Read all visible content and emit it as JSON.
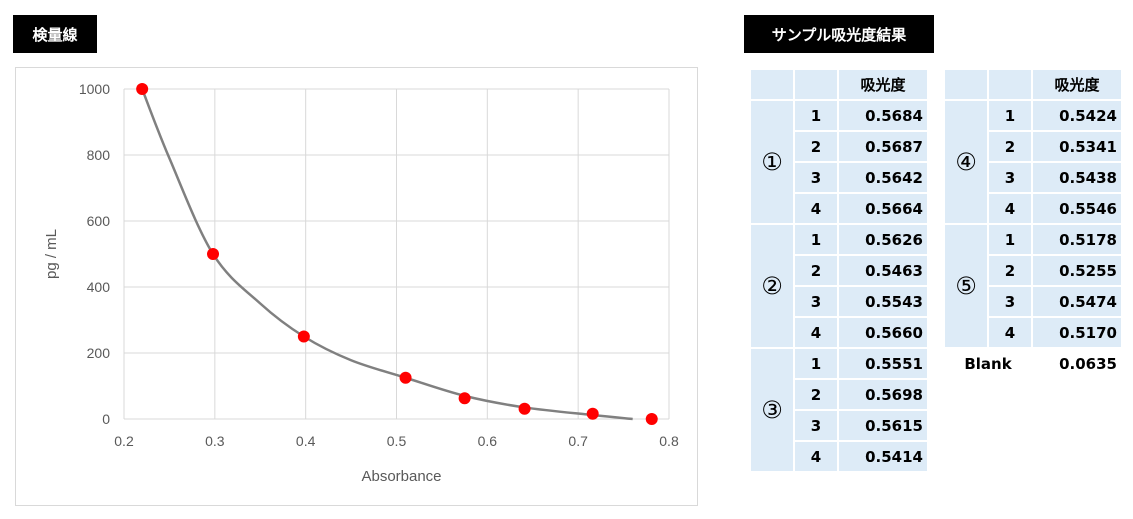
{
  "labels": {
    "chart": "検量線",
    "table": "サンプル吸光度結果"
  },
  "chart_data": {
    "type": "scatter",
    "xlabel": "Absorbance",
    "ylabel": "pg / mL",
    "xlim": [
      0.2,
      0.8
    ],
    "ylim": [
      0,
      1000
    ],
    "xticks": [
      "0.2",
      "0.3",
      "0.4",
      "0.5",
      "0.6",
      "0.7",
      "0.8"
    ],
    "yticks": [
      "0",
      "200",
      "400",
      "600",
      "800",
      "1000"
    ],
    "grid": true,
    "marker_color": "#ff0000",
    "curve_color": "#808080",
    "points": [
      {
        "x": 0.22,
        "y": 1000
      },
      {
        "x": 0.298,
        "y": 500
      },
      {
        "x": 0.398,
        "y": 250
      },
      {
        "x": 0.51,
        "y": 125
      },
      {
        "x": 0.575,
        "y": 63
      },
      {
        "x": 0.641,
        "y": 31
      },
      {
        "x": 0.716,
        "y": 16
      },
      {
        "x": 0.781,
        "y": 0
      }
    ],
    "curve": [
      {
        "x": 0.22,
        "y": 1000
      },
      {
        "x": 0.25,
        "y": 790
      },
      {
        "x": 0.298,
        "y": 500
      },
      {
        "x": 0.35,
        "y": 350
      },
      {
        "x": 0.398,
        "y": 250
      },
      {
        "x": 0.45,
        "y": 178
      },
      {
        "x": 0.51,
        "y": 125
      },
      {
        "x": 0.575,
        "y": 70
      },
      {
        "x": 0.641,
        "y": 35
      },
      {
        "x": 0.716,
        "y": 12
      },
      {
        "x": 0.76,
        "y": 0
      }
    ]
  },
  "table": {
    "header": "吸光度",
    "groups_left": [
      {
        "label": "①",
        "rows": [
          {
            "n": "1",
            "v": "0.5684"
          },
          {
            "n": "2",
            "v": "0.5687"
          },
          {
            "n": "3",
            "v": "0.5642"
          },
          {
            "n": "4",
            "v": "0.5664"
          }
        ]
      },
      {
        "label": "②",
        "rows": [
          {
            "n": "1",
            "v": "0.5626"
          },
          {
            "n": "2",
            "v": "0.5463"
          },
          {
            "n": "3",
            "v": "0.5543"
          },
          {
            "n": "4",
            "v": "0.5660"
          }
        ]
      },
      {
        "label": "③",
        "rows": [
          {
            "n": "1",
            "v": "0.5551"
          },
          {
            "n": "2",
            "v": "0.5698"
          },
          {
            "n": "3",
            "v": "0.5615"
          },
          {
            "n": "4",
            "v": "0.5414"
          }
        ]
      }
    ],
    "groups_right": [
      {
        "label": "④",
        "rows": [
          {
            "n": "1",
            "v": "0.5424"
          },
          {
            "n": "2",
            "v": "0.5341"
          },
          {
            "n": "3",
            "v": "0.5438"
          },
          {
            "n": "4",
            "v": "0.5546"
          }
        ]
      },
      {
        "label": "⑤",
        "rows": [
          {
            "n": "1",
            "v": "0.5178"
          },
          {
            "n": "2",
            "v": "0.5255"
          },
          {
            "n": "3",
            "v": "0.5474"
          },
          {
            "n": "4",
            "v": "0.5170"
          }
        ]
      }
    ],
    "blank": {
      "label": "Blank",
      "v": "0.0635"
    }
  }
}
